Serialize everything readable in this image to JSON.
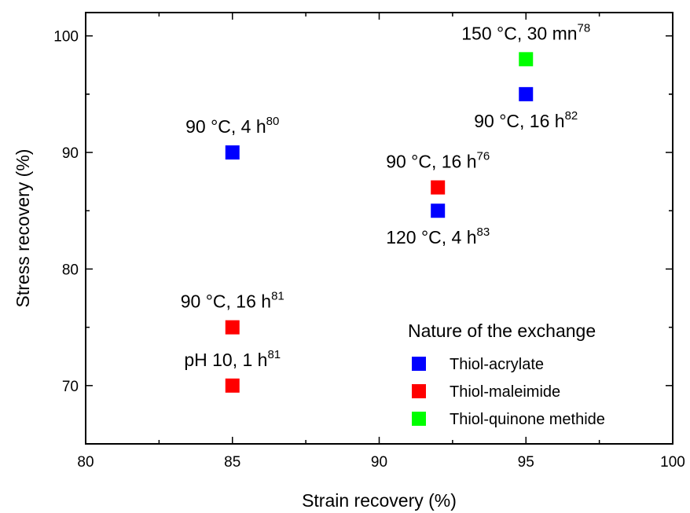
{
  "chart_data": {
    "type": "scatter",
    "xlabel": "Strain recovery (%)",
    "ylabel": "Stress recovery (%)",
    "xlim": [
      80,
      100
    ],
    "ylim": [
      65,
      102
    ],
    "xticks": [
      "80",
      "85",
      "90",
      "95",
      "100"
    ],
    "yticks": [
      "70",
      "80",
      "90",
      "100"
    ],
    "grid": false,
    "legend": {
      "title": "Nature of the exchange",
      "placement": "bottom-right"
    },
    "series": [
      {
        "name": "Thiol-acrylate",
        "color": "#0000ff",
        "points": [
          {
            "x": 85,
            "y": 90,
            "label": "90 °C, 4 h",
            "ref": "80",
            "label_pos": "above"
          },
          {
            "x": 92,
            "y": 85,
            "label": "120 °C, 4 h",
            "ref": "83",
            "label_pos": "below"
          },
          {
            "x": 95,
            "y": 95,
            "label": "90 °C, 16 h",
            "ref": "82",
            "label_pos": "below"
          }
        ]
      },
      {
        "name": "Thiol-maleimide",
        "color": "#ff0000",
        "points": [
          {
            "x": 85,
            "y": 75,
            "label": "90 °C, 16 h",
            "ref": "81",
            "label_pos": "above"
          },
          {
            "x": 85,
            "y": 70,
            "label": "pH 10, 1 h",
            "ref": "81",
            "label_pos": "above"
          },
          {
            "x": 92,
            "y": 87,
            "label": "90 °C, 16 h",
            "ref": "76",
            "label_pos": "above"
          }
        ]
      },
      {
        "name": "Thiol-quinone methide",
        "color": "#00ff00",
        "points": [
          {
            "x": 95,
            "y": 98,
            "label": "150 °C, 30 mn",
            "ref": "78",
            "label_pos": "above"
          }
        ]
      }
    ]
  }
}
